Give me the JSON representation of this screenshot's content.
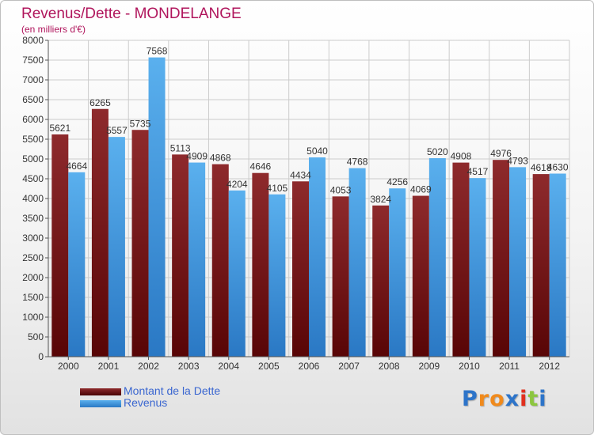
{
  "chart_data": {
    "type": "bar",
    "title": "Revenus/Dette - MONDELANGE",
    "subtitle": "(en milliers d'€)",
    "categories": [
      "2000",
      "2001",
      "2002",
      "2003",
      "2004",
      "2005",
      "2006",
      "2007",
      "2008",
      "2009",
      "2010",
      "2011",
      "2012"
    ],
    "series": [
      {
        "name": "Montant de la Dette",
        "color": "#7a1a1c",
        "values": [
          5621,
          6265,
          5735,
          5113,
          4868,
          4646,
          4434,
          4053,
          3824,
          4069,
          4908,
          4976,
          4618
        ]
      },
      {
        "name": "Revenus",
        "color": "#4fa3e2",
        "values": [
          4664,
          5557,
          7568,
          4909,
          4204,
          4105,
          5040,
          4768,
          4256,
          5020,
          4517,
          4793,
          4630
        ]
      }
    ],
    "ylim": [
      0,
      8000
    ],
    "yticks": [
      0,
      500,
      1000,
      1500,
      2000,
      2500,
      3000,
      3500,
      4000,
      4500,
      5000,
      5500,
      6000,
      6500,
      7000,
      7500,
      8000
    ],
    "grid": true,
    "legend_position": "bottom-left",
    "xlabel": "",
    "ylabel": ""
  },
  "legend": {
    "items": [
      {
        "label": "Montant de la Dette",
        "color": "#6b0f12"
      },
      {
        "label": "Revenus",
        "color": "#4fa3e2"
      }
    ]
  },
  "logo": {
    "letters": [
      "P",
      "r",
      "o",
      "x",
      "i",
      "t",
      "i"
    ],
    "colors": [
      "#2d74c9",
      "#f08a1c",
      "#f08a1c",
      "#2d74c9",
      "#e0301e",
      "#8cc63e",
      "#2d74c9"
    ]
  }
}
